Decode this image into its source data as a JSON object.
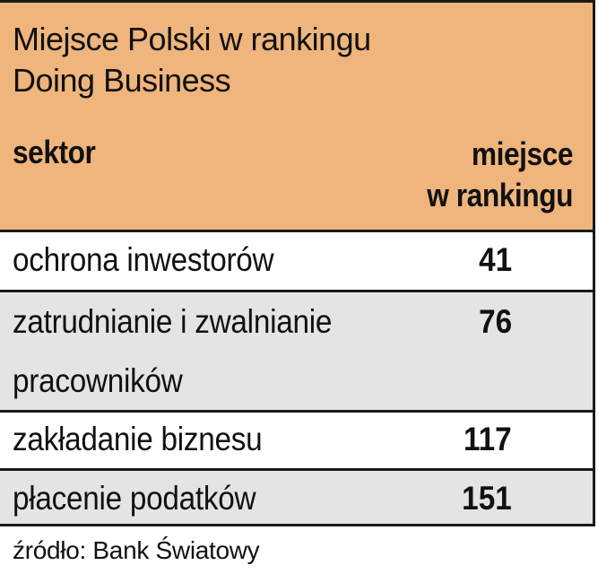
{
  "chart_data": {
    "type": "table",
    "title": "Miejsce Polski w rankingu Doing Business",
    "title_lines": [
      "Miejsce Polski w rankingu",
      "Doing Business"
    ],
    "columns": [
      "sektor",
      "miejsce w rankingu"
    ],
    "column_right_lines": [
      "miejsce",
      "w rankingu"
    ],
    "rows": [
      {
        "sektor": "ochrona inwestorów",
        "sektor_lines": [
          "ochrona inwestorów"
        ],
        "rank": 41
      },
      {
        "sektor": "zatrudnianie i zwalnianie pracowników",
        "sektor_lines": [
          "zatrudnianie i zwalnianie",
          "pracowników"
        ],
        "rank": 76
      },
      {
        "sektor": "zakładanie biznesu",
        "sektor_lines": [
          "zakładanie biznesu"
        ],
        "rank": 117
      },
      {
        "sektor": "płacenie podatków",
        "sektor_lines": [
          "płacenie podatków"
        ],
        "rank": 151
      }
    ],
    "source": "źródło: Bank Światowy"
  },
  "colors": {
    "header_bg": "#efb57d",
    "row_white": "#ffffff",
    "row_grey": "#e4e4e3",
    "rule": "#1a1a1a",
    "text": "#111111"
  }
}
